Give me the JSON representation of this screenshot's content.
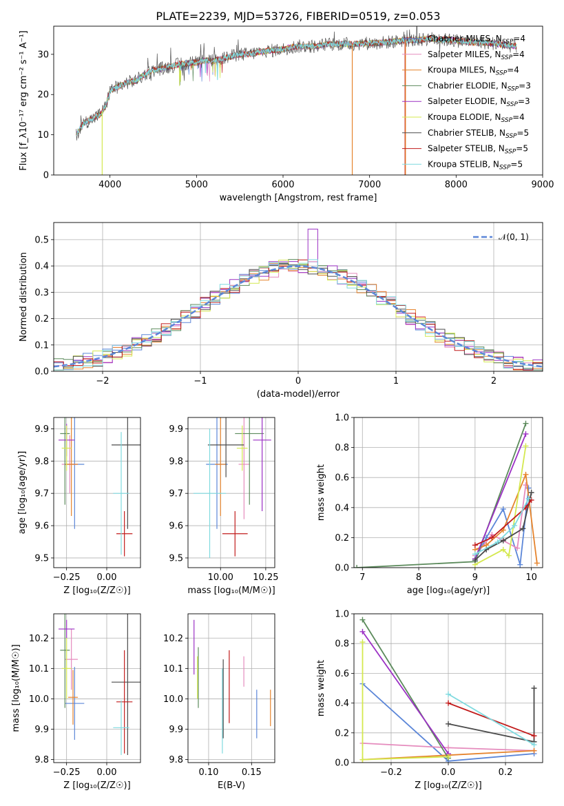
{
  "colors": {
    "chabrier_miles": "#5b86d8",
    "salpeter_miles": "#e58bbd",
    "kroupa_miles": "#e5832c",
    "chabrier_elodie": "#5b8a5b",
    "salpeter_elodie": "#9b30c4",
    "kroupa_elodie": "#d4e84e",
    "chabrier_stelib": "#4a4a4a",
    "salpeter_stelib": "#c11a1a",
    "kroupa_stelib": "#7fdadf"
  },
  "chart_data": [
    {
      "id": "spectrum",
      "type": "line",
      "title": "PLATE=2239, MJD=53726, FIBERID=0519, z=0.053",
      "xlabel": "wavelength [Angstrom, rest frame]",
      "ylabel": "Flux [f_λ10⁻¹⁷ erg cm⁻² s⁻¹ A⁻¹]",
      "xlim": [
        3350,
        9000
      ],
      "ylim": [
        0,
        37
      ],
      "xticks": [
        "4000",
        "5000",
        "6000",
        "7000",
        "8000",
        "9000"
      ],
      "yticks": [
        "0",
        "10",
        "20",
        "30"
      ],
      "grid": false,
      "legend_position": "top-right",
      "legend": [
        {
          "label": "Chabrier MILES, N_SSP=4",
          "main": "Chabrier MILES, N",
          "sub": "SSP",
          "tail": "=4"
        },
        {
          "label": "Salpeter MILES, N_SSP=4",
          "main": "Salpeter MILES, N",
          "sub": "SSP",
          "tail": "=4"
        },
        {
          "label": "Kroupa MILES, N_SSP=4",
          "main": "Kroupa MILES, N",
          "sub": "SSP",
          "tail": "=4"
        },
        {
          "label": "Chabrier ELODIE, N_SSP=3",
          "main": "Chabrier ELODIE, N",
          "sub": "SSP",
          "tail": "=3"
        },
        {
          "label": "Salpeter ELODIE, N_SSP=3",
          "main": "Salpeter ELODIE, N",
          "sub": "SSP",
          "tail": "=3"
        },
        {
          "label": "Kroupa ELODIE, N_SSP=4",
          "main": "Kroupa ELODIE, N",
          "sub": "SSP",
          "tail": "=4"
        },
        {
          "label": "Chabrier STELIB, N_SSP=5",
          "main": "Chabrier STELIB, N",
          "sub": "SSP",
          "tail": "=5"
        },
        {
          "label": "Salpeter STELIB, N_SSP=5",
          "main": "Salpeter STELIB, N",
          "sub": "SSP",
          "tail": "=5"
        },
        {
          "label": "Kroupa STELIB, N_SSP=5",
          "main": "Kroupa STELIB, N",
          "sub": "SSP",
          "tail": "=5"
        }
      ],
      "continuum": [
        [
          3610,
          10
        ],
        [
          3700,
          13
        ],
        [
          3800,
          14
        ],
        [
          3880,
          15
        ],
        [
          3950,
          17
        ],
        [
          4000,
          21
        ],
        [
          4100,
          22
        ],
        [
          4200,
          23
        ],
        [
          4300,
          23.5
        ],
        [
          4400,
          25
        ],
        [
          4500,
          26
        ],
        [
          4600,
          26.5
        ],
        [
          4700,
          27
        ],
        [
          4800,
          27.5
        ],
        [
          4900,
          27.8
        ],
        [
          5000,
          28
        ],
        [
          5100,
          28.5
        ],
        [
          5200,
          28.3
        ],
        [
          5300,
          29
        ],
        [
          5400,
          29.5
        ],
        [
          5500,
          30
        ],
        [
          5600,
          30
        ],
        [
          5700,
          30.5
        ],
        [
          5800,
          30.8
        ],
        [
          5900,
          31
        ],
        [
          6000,
          31.3
        ],
        [
          6100,
          31.8
        ],
        [
          6200,
          32
        ],
        [
          6300,
          32
        ],
        [
          6400,
          32
        ],
        [
          6500,
          32.5
        ],
        [
          6600,
          32.5
        ],
        [
          6700,
          32.6
        ],
        [
          6800,
          32.5
        ],
        [
          6900,
          32.7
        ],
        [
          7000,
          32.8
        ],
        [
          7100,
          32.8
        ],
        [
          7200,
          33
        ],
        [
          7300,
          33.2
        ],
        [
          7400,
          33.5
        ],
        [
          7500,
          33.5
        ],
        [
          7600,
          33.6
        ],
        [
          7700,
          34
        ],
        [
          7800,
          33.6
        ],
        [
          7900,
          33.6
        ],
        [
          8000,
          33.4
        ],
        [
          8100,
          33.2
        ],
        [
          8200,
          33
        ],
        [
          8300,
          33
        ],
        [
          8400,
          32.8
        ],
        [
          8500,
          32.5
        ],
        [
          8600,
          32.2
        ],
        [
          8700,
          32
        ]
      ],
      "dropouts": [
        {
          "series": "kroupa_elodie",
          "x": 3910
        },
        {
          "series": "kroupa_miles",
          "x": 6800
        },
        {
          "series": "salpeter_stelib",
          "x": 7410
        },
        {
          "series": "kroupa_miles",
          "x": 7415
        }
      ]
    },
    {
      "id": "residuals",
      "type": "histogram",
      "xlabel": "(data-model)/error",
      "ylabel": "Normed distribution",
      "xlim": [
        -2.5,
        2.5
      ],
      "ylim": [
        0,
        0.565
      ],
      "xticks": [
        "−2",
        "−1",
        "0",
        "1",
        "2"
      ],
      "yticks": [
        "0.0",
        "0.1",
        "0.2",
        "0.3",
        "0.4",
        "0.5"
      ],
      "grid": true,
      "bin_width": 0.1,
      "legend": [
        {
          "label": "𝒩(0, 1)"
        }
      ]
    },
    {
      "id": "age_vs_Z",
      "type": "errorbar",
      "xlabel": "Z [log₁₀(Z/Z☉)]",
      "ylabel": "age  [log₁₀(age/yr)]",
      "xlim": [
        -0.33,
        0.21
      ],
      "ylim": [
        9.47,
        9.935
      ],
      "xticks": [
        "−0.25",
        "0.00"
      ],
      "yticks": [
        "9.5",
        "9.6",
        "9.7",
        "9.8",
        "9.9"
      ],
      "grid": true,
      "points": [
        {
          "series": "chabrier_miles",
          "x": -0.2,
          "xerr": 0.06,
          "y": 9.79,
          "yerr": 0.2
        },
        {
          "series": "salpeter_miles",
          "x": -0.23,
          "xerr": 0.05,
          "y": 9.79,
          "yerr": 0.09
        },
        {
          "series": "kroupa_miles",
          "x": -0.22,
          "xerr": 0.04,
          "y": 9.79,
          "yerr": 0.16
        },
        {
          "series": "chabrier_elodie",
          "x": -0.26,
          "xerr": 0.03,
          "y": 9.885,
          "yerr": 0.22
        },
        {
          "series": "salpeter_elodie",
          "x": -0.25,
          "xerr": 0.05,
          "y": 9.865,
          "yerr": 0.05
        },
        {
          "series": "kroupa_elodie",
          "x": -0.25,
          "xerr": 0.03,
          "y": 9.84,
          "yerr": 0.07
        },
        {
          "series": "chabrier_stelib",
          "x": 0.13,
          "xerr": 0.1,
          "y": 9.85,
          "yerr": 0.26
        },
        {
          "series": "salpeter_stelib",
          "x": 0.11,
          "xerr": 0.05,
          "y": 9.575,
          "yerr": 0.07
        },
        {
          "series": "kroupa_stelib",
          "x": 0.09,
          "xerr": 0.05,
          "y": 9.7,
          "yerr": 0.19
        }
      ]
    },
    {
      "id": "age_vs_mass",
      "type": "errorbar",
      "xlabel": "mass [log₁₀(M/M☉)]",
      "ylabel": "",
      "xlim": [
        9.82,
        10.3
      ],
      "ylim": [
        9.47,
        9.935
      ],
      "xticks": [
        "10.00",
        "10.25"
      ],
      "yticks": [
        "9.5",
        "9.6",
        "9.7",
        "9.8",
        "9.9"
      ],
      "grid": true,
      "points": [
        {
          "series": "chabrier_miles",
          "x": 9.98,
          "xerr": 0.06,
          "y": 9.79,
          "yerr": 0.2
        },
        {
          "series": "salpeter_miles",
          "x": 10.13,
          "xerr": 0.03,
          "y": 9.79,
          "yerr": 0.17
        },
        {
          "series": "kroupa_miles",
          "x": 10.0,
          "xerr": 0.03,
          "y": 9.79,
          "yerr": 0.16
        },
        {
          "series": "chabrier_elodie",
          "x": 10.16,
          "xerr": 0.08,
          "y": 9.885,
          "yerr": 0.22
        },
        {
          "series": "salpeter_elodie",
          "x": 10.23,
          "xerr": 0.05,
          "y": 9.865,
          "yerr": 0.22
        },
        {
          "series": "kroupa_elodie",
          "x": 10.12,
          "xerr": 0.03,
          "y": 9.84,
          "yerr": 0.07
        },
        {
          "series": "chabrier_stelib",
          "x": 10.03,
          "xerr": 0.1,
          "y": 9.85,
          "yerr": 0.1
        },
        {
          "series": "salpeter_stelib",
          "x": 10.08,
          "xerr": 0.07,
          "y": 9.575,
          "yerr": 0.07
        },
        {
          "series": "kroupa_stelib",
          "x": 9.94,
          "xerr": 0.09,
          "y": 9.7,
          "yerr": 0.2
        }
      ]
    },
    {
      "id": "weight_vs_age",
      "type": "line",
      "xlabel": "age  [log₁₀(age/yr)]",
      "ylabel": "mass weight",
      "xlim": [
        6.85,
        10.2
      ],
      "ylim": [
        0,
        1
      ],
      "xticks": [
        "7",
        "8",
        "9",
        "10"
      ],
      "yticks": [
        "0.0",
        "0.2",
        "0.4",
        "0.6",
        "0.8",
        "1.0"
      ],
      "grid": true,
      "series": [
        {
          "key": "chabrier_miles",
          "points": [
            [
              9.0,
              0.05
            ],
            [
              9.2,
              0.2
            ],
            [
              9.5,
              0.39
            ],
            [
              9.8,
              0.02
            ],
            [
              9.95,
              0.53
            ]
          ]
        },
        {
          "key": "salpeter_miles",
          "points": [
            [
              9.0,
              0.08
            ],
            [
              9.3,
              0.22
            ],
            [
              9.75,
              0.13
            ],
            [
              9.9,
              0.55
            ]
          ]
        },
        {
          "key": "kroupa_miles",
          "points": [
            [
              9.0,
              0.12
            ],
            [
              9.2,
              0.15
            ],
            [
              9.5,
              0.25
            ],
            [
              9.9,
              0.62
            ],
            [
              10.1,
              0.03
            ]
          ]
        },
        {
          "key": "chabrier_elodie",
          "points": [
            [
              6.9,
              0.0
            ],
            [
              9.0,
              0.04
            ],
            [
              9.9,
              0.96
            ]
          ]
        },
        {
          "key": "salpeter_elodie",
          "points": [
            [
              9.0,
              0.06
            ],
            [
              9.9,
              0.89
            ]
          ]
        },
        {
          "key": "kroupa_elodie",
          "points": [
            [
              9.0,
              0.02
            ],
            [
              9.5,
              0.12
            ],
            [
              9.6,
              0.08
            ],
            [
              9.9,
              0.81
            ]
          ]
        },
        {
          "key": "chabrier_stelib",
          "points": [
            [
              9.0,
              0.05
            ],
            [
              9.2,
              0.12
            ],
            [
              9.5,
              0.18
            ],
            [
              9.85,
              0.26
            ],
            [
              10.0,
              0.5
            ]
          ]
        },
        {
          "key": "salpeter_stelib",
          "points": [
            [
              9.0,
              0.15
            ],
            [
              9.3,
              0.2
            ],
            [
              9.9,
              0.4
            ],
            [
              10.0,
              0.45
            ]
          ]
        },
        {
          "key": "kroupa_stelib",
          "points": [
            [
              9.0,
              0.09
            ],
            [
              9.4,
              0.17
            ],
            [
              9.7,
              0.28
            ],
            [
              9.95,
              0.46
            ]
          ]
        }
      ]
    },
    {
      "id": "mass_vs_Z",
      "type": "errorbar",
      "xlabel": "Z [log₁₀(Z/Z☉)]",
      "ylabel": "mass [log₁₀(M/M☉)]",
      "xlim": [
        -0.33,
        0.21
      ],
      "ylim": [
        9.79,
        10.28
      ],
      "xticks": [
        "−0.25",
        "0.00"
      ],
      "yticks": [
        "9.8",
        "9.9",
        "10.0",
        "10.1",
        "10.2"
      ],
      "grid": true,
      "points": [
        {
          "series": "chabrier_miles",
          "x": -0.2,
          "xerr": 0.06,
          "y": 9.985,
          "yerr": 0.12
        },
        {
          "series": "salpeter_miles",
          "x": -0.22,
          "xerr": 0.04,
          "y": 10.13,
          "yerr": 0.1
        },
        {
          "series": "kroupa_miles",
          "x": -0.21,
          "xerr": 0.03,
          "y": 10.005,
          "yerr": 0.09
        },
        {
          "series": "chabrier_elodie",
          "x": -0.26,
          "xerr": 0.03,
          "y": 10.16,
          "yerr": 0.19
        },
        {
          "series": "salpeter_elodie",
          "x": -0.25,
          "xerr": 0.05,
          "y": 10.23,
          "yerr": 0.03
        },
        {
          "series": "kroupa_elodie",
          "x": -0.25,
          "xerr": 0.03,
          "y": 10.1,
          "yerr": 0.1
        },
        {
          "series": "chabrier_stelib",
          "x": 0.13,
          "xerr": 0.1,
          "y": 10.055,
          "yerr": 0.24
        },
        {
          "series": "salpeter_stelib",
          "x": 0.11,
          "xerr": 0.05,
          "y": 9.99,
          "yerr": 0.17
        },
        {
          "series": "kroupa_stelib",
          "x": 0.09,
          "xerr": 0.05,
          "y": 9.905,
          "yerr": 0.09
        }
      ]
    },
    {
      "id": "mass_vs_ebv",
      "type": "errorbar",
      "xlabel": "E(B-V)",
      "ylabel": "",
      "xlim": [
        0.076,
        0.177
      ],
      "ylim": [
        9.79,
        10.28
      ],
      "xticks": [
        "0.10",
        "0.15"
      ],
      "yticks": [
        "9.8",
        "9.9",
        "10.0",
        "10.1",
        "10.2"
      ],
      "grid": true,
      "points": [
        {
          "series": "chabrier_miles",
          "x": 0.156,
          "xerr": 0,
          "y": 9.95,
          "yerr": 0.08
        },
        {
          "series": "salpeter_miles",
          "x": 0.141,
          "xerr": 0,
          "y": 10.09,
          "yerr": 0.05
        },
        {
          "series": "kroupa_miles",
          "x": 0.172,
          "xerr": 0,
          "y": 9.97,
          "yerr": 0.06
        },
        {
          "series": "chabrier_elodie",
          "x": 0.088,
          "xerr": 0,
          "y": 10.07,
          "yerr": 0.1
        },
        {
          "series": "salpeter_elodie",
          "x": 0.083,
          "xerr": 0,
          "y": 10.17,
          "yerr": 0.09
        },
        {
          "series": "kroupa_elodie",
          "x": 0.087,
          "xerr": 0,
          "y": 10.07,
          "yerr": 0.07
        },
        {
          "series": "chabrier_stelib",
          "x": 0.117,
          "xerr": 0,
          "y": 10.0,
          "yerr": 0.13
        },
        {
          "series": "salpeter_stelib",
          "x": 0.124,
          "xerr": 0,
          "y": 10.04,
          "yerr": 0.12
        },
        {
          "series": "kroupa_stelib",
          "x": 0.116,
          "xerr": 0,
          "y": 9.96,
          "yerr": 0.14
        }
      ]
    },
    {
      "id": "weight_vs_Z",
      "type": "line",
      "xlabel": "Z [log₁₀(Z/Z☉)]",
      "ylabel": "mass weight",
      "xlim": [
        -0.33,
        0.33
      ],
      "ylim": [
        0,
        1
      ],
      "xticks": [
        "−0.2",
        "0.0",
        "0.2"
      ],
      "yticks": [
        "0.0",
        "0.2",
        "0.4",
        "0.6",
        "0.8",
        "1.0"
      ],
      "grid": true,
      "series": [
        {
          "key": "chabrier_miles",
          "points": [
            [
              -0.3,
              0.53
            ],
            [
              0.0,
              0.01
            ],
            [
              0.3,
              0.06
            ]
          ]
        },
        {
          "key": "salpeter_miles",
          "points": [
            [
              -0.3,
              0.13
            ],
            [
              0.0,
              0.1
            ],
            [
              0.3,
              0.08
            ]
          ]
        },
        {
          "key": "kroupa_miles",
          "points": [
            [
              -0.3,
              0.02
            ],
            [
              0.0,
              0.05
            ],
            [
              0.3,
              0.08
            ]
          ]
        },
        {
          "key": "chabrier_elodie",
          "points": [
            [
              -0.3,
              0.96
            ],
            [
              0.0,
              0.03
            ]
          ]
        },
        {
          "key": "salpeter_elodie",
          "points": [
            [
              -0.3,
              0.88
            ],
            [
              0.0,
              0.06
            ]
          ]
        },
        {
          "key": "kroupa_elodie",
          "points": [
            [
              -0.3,
              0.81
            ],
            [
              -0.3,
              0.02
            ],
            [
              0.0,
              0.04
            ]
          ]
        },
        {
          "key": "chabrier_stelib",
          "points": [
            [
              0.0,
              0.26
            ],
            [
              0.3,
              0.14
            ],
            [
              0.3,
              0.5
            ]
          ]
        },
        {
          "key": "salpeter_stelib",
          "points": [
            [
              0.0,
              0.4
            ],
            [
              0.3,
              0.18
            ]
          ]
        },
        {
          "key": "kroupa_stelib",
          "points": [
            [
              0.0,
              0.46
            ],
            [
              0.3,
              0.12
            ]
          ]
        }
      ]
    }
  ]
}
